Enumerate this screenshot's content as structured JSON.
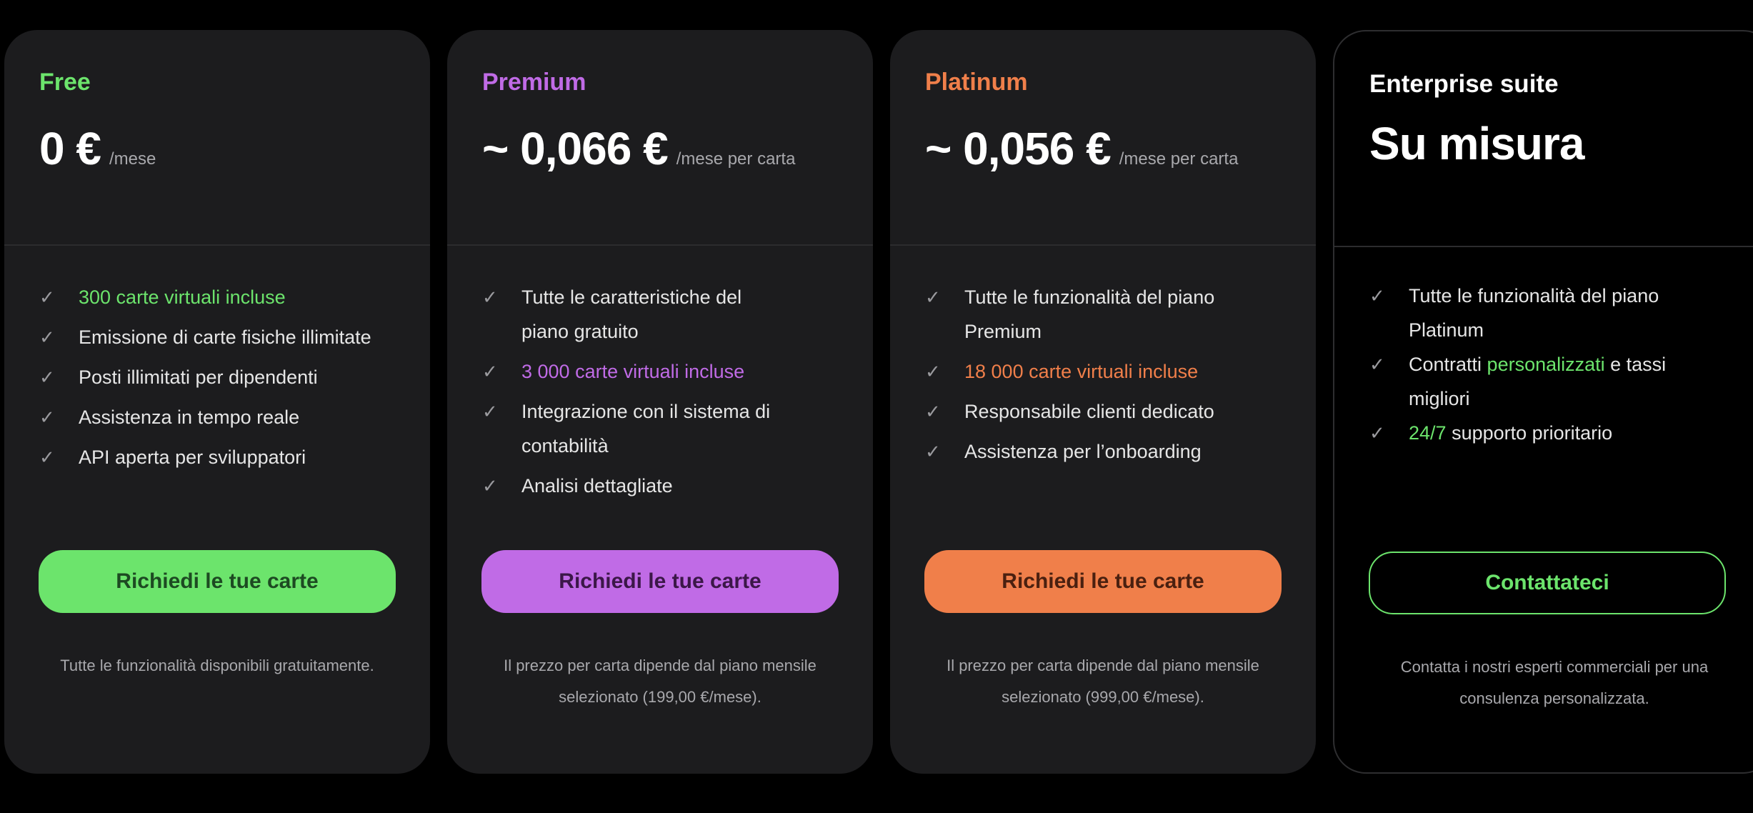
{
  "plans": [
    {
      "name": "Free",
      "color": "#6ce46c",
      "price": "0 €",
      "unit": "/mese",
      "features": [
        {
          "hl": "300 carte virtuali incluse",
          "rest": ""
        },
        {
          "hl": "",
          "rest": "Emissione di carte fisiche illimitate"
        },
        {
          "hl": "",
          "rest": "Posti illimitati per dipendenti"
        },
        {
          "hl": "",
          "rest": "Assistenza in tempo reale"
        },
        {
          "hl": "",
          "rest": "API aperta per sviluppatori"
        }
      ],
      "button": "Richiedi le tue carte",
      "button_text_color": "#1d4a22",
      "note": "Tutte le funzionalità disponibili gratuitamente."
    },
    {
      "name": "Premium",
      "color": "#c06be6",
      "price": "~ 0,066 €",
      "unit": "/mese per carta",
      "features": [
        {
          "hl": "",
          "rest": "Tutte le caratteristiche del piano gratuito"
        },
        {
          "hl": "3 000 carte virtuali incluse",
          "rest": ""
        },
        {
          "hl": "",
          "rest": "Integrazione con il sistema di contabilità"
        },
        {
          "hl": "",
          "rest": "Analisi dettagliate"
        }
      ],
      "button": "Richiedi le tue carte",
      "button_text_color": "#3b1748",
      "note": "Il prezzo per carta dipende dal piano mensile selezionato (199,00 €/mese)."
    },
    {
      "name": "Platinum",
      "color": "#f07f4a",
      "price": "~ 0,056 €",
      "unit": "/mese per carta",
      "features": [
        {
          "hl": "",
          "rest": "Tutte le funzionalità del piano Premium"
        },
        {
          "hl": "18 000 carte virtuali incluse",
          "rest": ""
        },
        {
          "hl": "",
          "rest": "Responsabile clienti dedicato"
        },
        {
          "hl": "",
          "rest": "Assistenza per l’onboarding"
        }
      ],
      "button": "Richiedi le tue carte",
      "button_text_color": "#4a2010",
      "note": "Il prezzo per carta dipende dal piano mensile selezionato (999,00 €/mese)."
    }
  ],
  "enterprise": {
    "name": "Enterprise suite",
    "price": "Su misura",
    "accent": "#6ce46c",
    "features": [
      {
        "parts": [
          {
            "t": "Tutte le funzionalità del piano Platinum",
            "hl": false
          }
        ]
      },
      {
        "parts": [
          {
            "t": "Contratti ",
            "hl": false
          },
          {
            "t": "personalizzati",
            "hl": true
          },
          {
            "t": " e tassi migliori",
            "hl": false
          }
        ]
      },
      {
        "parts": [
          {
            "t": "24/7",
            "hl": true
          },
          {
            "t": " supporto prioritario",
            "hl": false
          }
        ]
      }
    ],
    "button": "Contattateci",
    "note": "Contatta i nostri esperti commerciali per una consulenza personalizzata."
  },
  "icons": {
    "check": "check-icon"
  }
}
